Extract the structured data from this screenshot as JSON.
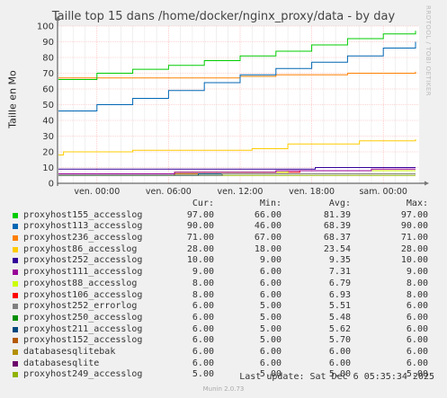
{
  "title": "Taille top 15 dans /home/docker/nginx_proxy/data - by day",
  "side_text": "RRDTOOL / TOBI OETIKER",
  "legend_headers": {
    "cur": "Cur:",
    "min": "Min:",
    "avg": "Avg:",
    "max": "Max:"
  },
  "last_update": "Last update: Sat Dec  6 05:35:34 2025",
  "footer": "Munin 2.0.73",
  "chart_data": {
    "type": "line",
    "title": "Taille top 15 dans /home/docker/nginx_proxy/data - by day",
    "ylabel": "Taille en Mo",
    "xlabel": "",
    "ylim": [
      0,
      100
    ],
    "yticks": [
      0,
      10,
      20,
      30,
      40,
      50,
      60,
      70,
      80,
      90,
      100
    ],
    "xlim": [
      -3.3,
      21.6
    ],
    "xtick_positions": [
      0,
      6,
      12,
      18,
      24
    ],
    "xtick_labels": [
      "ven. 00:00",
      "ven. 06:00",
      "ven. 12:00",
      "ven. 18:00",
      "sam. 00:00"
    ],
    "grid": true,
    "legend": "below",
    "series": [
      {
        "name": "proxyhost155_accesslog",
        "color": "#00cc00",
        "cur": "97.00",
        "min": "66.00",
        "avg": "81.39",
        "max": "97.00",
        "points": [
          [
            -3.3,
            66
          ],
          [
            0,
            70
          ],
          [
            3,
            72.5
          ],
          [
            6,
            75
          ],
          [
            9,
            78
          ],
          [
            12,
            81
          ],
          [
            15,
            84
          ],
          [
            18,
            88
          ],
          [
            21,
            92
          ],
          [
            24,
            95
          ],
          [
            26.7,
            97
          ]
        ]
      },
      {
        "name": "proxyhost113_accesslog",
        "color": "#0066b3",
        "cur": "90.00",
        "min": "46.00",
        "avg": "68.39",
        "max": "90.00",
        "points": [
          [
            -3.3,
            46
          ],
          [
            0,
            50
          ],
          [
            3,
            54
          ],
          [
            6,
            59
          ],
          [
            9,
            64
          ],
          [
            12,
            69
          ],
          [
            15,
            73
          ],
          [
            18,
            77
          ],
          [
            21,
            81
          ],
          [
            24,
            86
          ],
          [
            26.7,
            90
          ]
        ]
      },
      {
        "name": "proxyhost236_accesslog",
        "color": "#ff8000",
        "cur": "71.00",
        "min": "67.00",
        "avg": "68.37",
        "max": "71.00",
        "points": [
          [
            -3.3,
            67
          ],
          [
            11,
            67
          ],
          [
            12,
            68
          ],
          [
            15,
            69
          ],
          [
            18,
            69
          ],
          [
            21,
            70
          ],
          [
            26.7,
            71
          ]
        ]
      },
      {
        "name": "proxyhost86_accesslog",
        "color": "#ffcc00",
        "cur": "28.00",
        "min": "18.00",
        "avg": "23.54",
        "max": "28.00",
        "points": [
          [
            -3.3,
            18
          ],
          [
            -2.8,
            20
          ],
          [
            2,
            20
          ],
          [
            3,
            21
          ],
          [
            10,
            21
          ],
          [
            13,
            22
          ],
          [
            16,
            25
          ],
          [
            20,
            25
          ],
          [
            22,
            27
          ],
          [
            26.7,
            28
          ]
        ]
      },
      {
        "name": "proxyhost252_accesslog",
        "color": "#330099",
        "cur": "10.00",
        "min": "9.00",
        "avg": "9.35",
        "max": "10.00",
        "points": [
          [
            -3.3,
            9
          ],
          [
            18,
            9
          ],
          [
            18.3,
            10
          ],
          [
            26.7,
            10
          ]
        ]
      },
      {
        "name": "proxyhost111_accesslog",
        "color": "#990099",
        "cur": "9.00",
        "min": "6.00",
        "avg": "7.31",
        "max": "9.00",
        "points": [
          [
            -3.3,
            6
          ],
          [
            6,
            6
          ],
          [
            6.5,
            7
          ],
          [
            14,
            7
          ],
          [
            15,
            8
          ],
          [
            22,
            8
          ],
          [
            23,
            9
          ],
          [
            26.7,
            9
          ]
        ]
      },
      {
        "name": "proxyhost88_accesslog",
        "color": "#ccff00",
        "cur": "8.00",
        "min": "6.00",
        "avg": "6.79",
        "max": "8.00",
        "points": [
          [
            -3.3,
            6
          ],
          [
            6,
            6
          ],
          [
            6.5,
            7
          ],
          [
            15,
            7
          ],
          [
            16,
            8
          ],
          [
            26.7,
            8
          ]
        ]
      },
      {
        "name": "proxyhost106_accesslog",
        "color": "#ff0000",
        "cur": "8.00",
        "min": "6.00",
        "avg": "6.93",
        "max": "8.00",
        "points": [
          [
            -3.3,
            6
          ],
          [
            6,
            6
          ],
          [
            6.5,
            7
          ],
          [
            16,
            7
          ],
          [
            17,
            8
          ],
          [
            26.7,
            8
          ]
        ]
      },
      {
        "name": "proxyhost252_errorlog",
        "color": "#808080",
        "cur": "6.00",
        "min": "5.00",
        "avg": "5.51",
        "max": "6.00",
        "points": [
          [
            -3.3,
            5
          ],
          [
            10,
            5
          ],
          [
            10.5,
            6
          ],
          [
            26.7,
            6
          ]
        ]
      },
      {
        "name": "proxyhost250_accesslog",
        "color": "#008f00",
        "cur": "6.00",
        "min": "5.00",
        "avg": "5.48",
        "max": "6.00",
        "points": [
          [
            -3.3,
            5
          ],
          [
            10,
            5
          ],
          [
            10.5,
            6
          ],
          [
            26.7,
            6
          ]
        ]
      },
      {
        "name": "proxyhost211_accesslog",
        "color": "#00487d",
        "cur": "6.00",
        "min": "5.00",
        "avg": "5.62",
        "max": "6.00",
        "points": [
          [
            -3.3,
            5
          ],
          [
            8,
            5
          ],
          [
            8.5,
            6
          ],
          [
            26.7,
            6
          ]
        ]
      },
      {
        "name": "proxyhost152_accesslog",
        "color": "#b35a00",
        "cur": "6.00",
        "min": "5.00",
        "avg": "5.70",
        "max": "6.00",
        "points": [
          [
            -3.3,
            5
          ],
          [
            6,
            5
          ],
          [
            6.5,
            6
          ],
          [
            26.7,
            6
          ]
        ]
      },
      {
        "name": "databasesqlitebak",
        "color": "#b38f00",
        "cur": "6.00",
        "min": "6.00",
        "avg": "6.00",
        "max": "6.00",
        "points": [
          [
            -3.3,
            6
          ],
          [
            26.7,
            6
          ]
        ]
      },
      {
        "name": "databasesqlite",
        "color": "#6b006b",
        "cur": "6.00",
        "min": "6.00",
        "avg": "6.00",
        "max": "6.00",
        "points": [
          [
            -3.3,
            6
          ],
          [
            26.7,
            6
          ]
        ]
      },
      {
        "name": "proxyhost249_accesslog",
        "color": "#8fb300",
        "cur": "5.00",
        "min": "5.00",
        "avg": "5.00",
        "max": "5.00",
        "points": [
          [
            -3.3,
            5
          ],
          [
            26.7,
            5
          ]
        ]
      }
    ]
  }
}
